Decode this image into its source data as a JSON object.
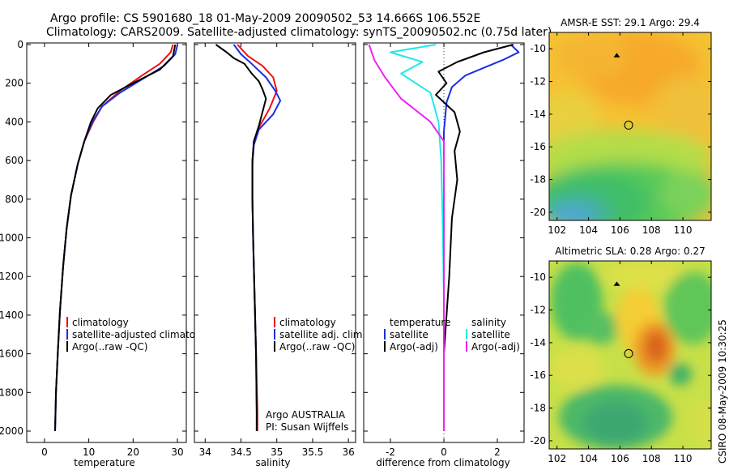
{
  "header": {
    "title_line1": "Argo profile: CS 5901680_18 01-May-2009 20090502_53 14.666S 106.552E",
    "title_line2": "Climatology: CARS2009. Satellite-adjusted climatology: synTS_20090502.nc (0.75d later)"
  },
  "side_stamp": "CSIRO 08-May-2009 10:30:25",
  "colors": {
    "red": "#ee1111",
    "blue": "#1a2fe0",
    "black": "#000000",
    "cyan": "#22e8e8",
    "magenta": "#ee22ee"
  },
  "chart_data": [
    {
      "type": "line",
      "name": "temperature-profile",
      "xlabel": "temperature",
      "ylabel": "",
      "xlim": [
        -4,
        32
      ],
      "ylim": [
        2050,
        0
      ],
      "y_reversed": true,
      "xticks": [
        0,
        10,
        20,
        30
      ],
      "yticks": [
        0,
        200,
        400,
        600,
        800,
        1000,
        1200,
        1400,
        1600,
        1800,
        2000
      ],
      "legend": [
        "climatology",
        "satellite-adjusted climatology",
        "Argo(..raw -QC)"
      ],
      "series": [
        {
          "name": "climatology",
          "color": "#ee1111",
          "x": [
            29,
            28.5,
            26,
            22,
            17,
            13,
            11,
            9,
            7.5,
            6,
            5,
            4.2,
            3.5,
            3,
            2.6,
            2.4
          ],
          "y": [
            0,
            40,
            100,
            160,
            240,
            320,
            400,
            500,
            620,
            780,
            950,
            1150,
            1380,
            1600,
            1800,
            2000
          ]
        },
        {
          "name": "satellite-adjusted climatology",
          "color": "#1a2fe0",
          "x": [
            30,
            29.5,
            27,
            22,
            17,
            13,
            10.8,
            9,
            7.5,
            6,
            5,
            4.2,
            3.5,
            3,
            2.6,
            2.4
          ],
          "y": [
            0,
            50,
            110,
            180,
            250,
            320,
            400,
            500,
            620,
            780,
            950,
            1150,
            1380,
            1600,
            1800,
            2000
          ]
        },
        {
          "name": "Argo(..raw -QC)",
          "color": "#000000",
          "x": [
            29.5,
            29,
            26,
            20,
            15,
            12,
            10.5,
            9,
            7.5,
            6,
            5,
            4.2,
            3.5,
            3,
            2.6,
            2.4
          ],
          "y": [
            0,
            60,
            130,
            200,
            260,
            330,
            400,
            500,
            620,
            780,
            950,
            1150,
            1380,
            1600,
            1800,
            2000
          ]
        }
      ]
    },
    {
      "type": "line",
      "name": "salinity-profile",
      "xlabel": "salinity",
      "xlim": [
        33.85,
        36.1
      ],
      "ylim": [
        2050,
        0
      ],
      "y_reversed": true,
      "xticks": [
        34,
        34.5,
        35,
        35.5,
        36
      ],
      "legend": [
        "climatology",
        "satellite adj. clim.",
        "Argo(..raw -QC)"
      ],
      "annotation": [
        "Argo AUSTRALIA",
        "PI: Susan Wijffels"
      ],
      "series": [
        {
          "name": "climatology",
          "color": "#ee1111",
          "x": [
            34.45,
            34.6,
            34.8,
            34.95,
            35.0,
            34.9,
            34.75,
            34.68,
            34.66,
            34.66,
            34.67,
            34.69,
            34.71,
            34.73,
            34.73
          ],
          "y": [
            0,
            60,
            110,
            170,
            240,
            330,
            430,
            500,
            600,
            800,
            1000,
            1300,
            1600,
            1900,
            2000
          ]
        },
        {
          "name": "satellite adj. clim.",
          "color": "#1a2fe0",
          "x": [
            34.4,
            34.5,
            34.65,
            34.85,
            34.98,
            35.05,
            34.95,
            34.75,
            34.68,
            34.66,
            34.66,
            34.67,
            34.69,
            34.71,
            34.72,
            34.72
          ],
          "y": [
            0,
            50,
            100,
            170,
            240,
            290,
            360,
            440,
            520,
            620,
            800,
            1000,
            1300,
            1600,
            1900,
            2000
          ]
        },
        {
          "name": "Argo(..raw -QC)",
          "color": "#000000",
          "x": [
            34.15,
            34.3,
            34.4,
            34.55,
            34.65,
            34.75,
            34.8,
            34.85,
            34.8,
            34.75,
            34.68,
            34.66,
            34.66,
            34.67,
            34.69,
            34.71,
            34.72,
            34.72
          ],
          "y": [
            0,
            40,
            70,
            100,
            150,
            190,
            230,
            280,
            350,
            420,
            500,
            600,
            800,
            1000,
            1300,
            1600,
            1900,
            2000
          ]
        }
      ]
    },
    {
      "type": "line",
      "name": "difference-profile",
      "xlabel": "difference from climatology",
      "xlim": [
        -3,
        3
      ],
      "ylim": [
        2050,
        0
      ],
      "y_reversed": true,
      "xticks": [
        -2,
        0,
        2
      ],
      "legend": {
        "temperature_col": {
          "header": "temperature",
          "items": [
            "satellite",
            "Argo(-adj)"
          ]
        },
        "salinity_col": {
          "header": "salinity",
          "items": [
            "satellite",
            "Argo(-adj)"
          ]
        }
      },
      "series": [
        {
          "name": "temperature satellite",
          "color": "#1a2fe0",
          "x": [
            2.5,
            2.8,
            2.2,
            1.5,
            0.8,
            0.3,
            0.1,
            0.0,
            0.0,
            0.0,
            0.0,
            0.0,
            0.0
          ],
          "y": [
            0,
            40,
            80,
            120,
            160,
            220,
            300,
            450,
            600,
            900,
            1300,
            1700,
            2000
          ]
        },
        {
          "name": "temperature Argo(-adj)",
          "color": "#000000",
          "x": [
            2.6,
            1.5,
            0.5,
            -0.2,
            0.1,
            -0.3,
            0.4,
            0.6,
            0.4,
            0.5,
            0.3,
            0.2,
            0.0,
            0.0
          ],
          "y": [
            0,
            40,
            90,
            140,
            200,
            260,
            350,
            450,
            550,
            700,
            900,
            1200,
            1600,
            2000
          ]
        },
        {
          "name": "salinity satellite",
          "color": "#22e8e8",
          "x": [
            -0.3,
            -2.0,
            -0.8,
            -1.6,
            -0.5,
            -0.2,
            -0.1,
            -0.05,
            0.0,
            0.0,
            0.0
          ],
          "y": [
            0,
            40,
            90,
            150,
            250,
            400,
            600,
            900,
            1300,
            1700,
            2000
          ]
        },
        {
          "name": "salinity Argo(-adj)",
          "color": "#ee22ee",
          "x": [
            -2.8,
            -2.6,
            -2.2,
            -1.6,
            -0.5,
            0.0,
            0.0,
            0.0,
            0.0
          ],
          "y": [
            0,
            80,
            170,
            280,
            400,
            500,
            800,
            1300,
            2000
          ]
        }
      ]
    },
    {
      "type": "heatmap",
      "name": "sst-map",
      "title": "AMSR-E SST: 29.1 Argo: 29.4",
      "xlim": [
        101.5,
        111.8
      ],
      "ylim": [
        -20.5,
        -9
      ],
      "xticks": [
        102,
        104,
        106,
        108,
        110
      ],
      "yticks": [
        -10,
        -12,
        -14,
        -16,
        -18,
        -20
      ],
      "argo_position": [
        106.55,
        -14.67
      ],
      "previous_position": [
        105.8,
        -10.4
      ]
    },
    {
      "type": "heatmap",
      "name": "sla-map",
      "title": "Altimetric SLA: 0.28 Argo: 0.27",
      "xlim": [
        101.5,
        111.8
      ],
      "ylim": [
        -20.5,
        -9
      ],
      "xticks": [
        102,
        104,
        106,
        108,
        110
      ],
      "yticks": [
        -10,
        -12,
        -14,
        -16,
        -18,
        -20
      ],
      "argo_position": [
        106.55,
        -14.67
      ],
      "previous_position": [
        105.8,
        -10.4
      ]
    }
  ]
}
